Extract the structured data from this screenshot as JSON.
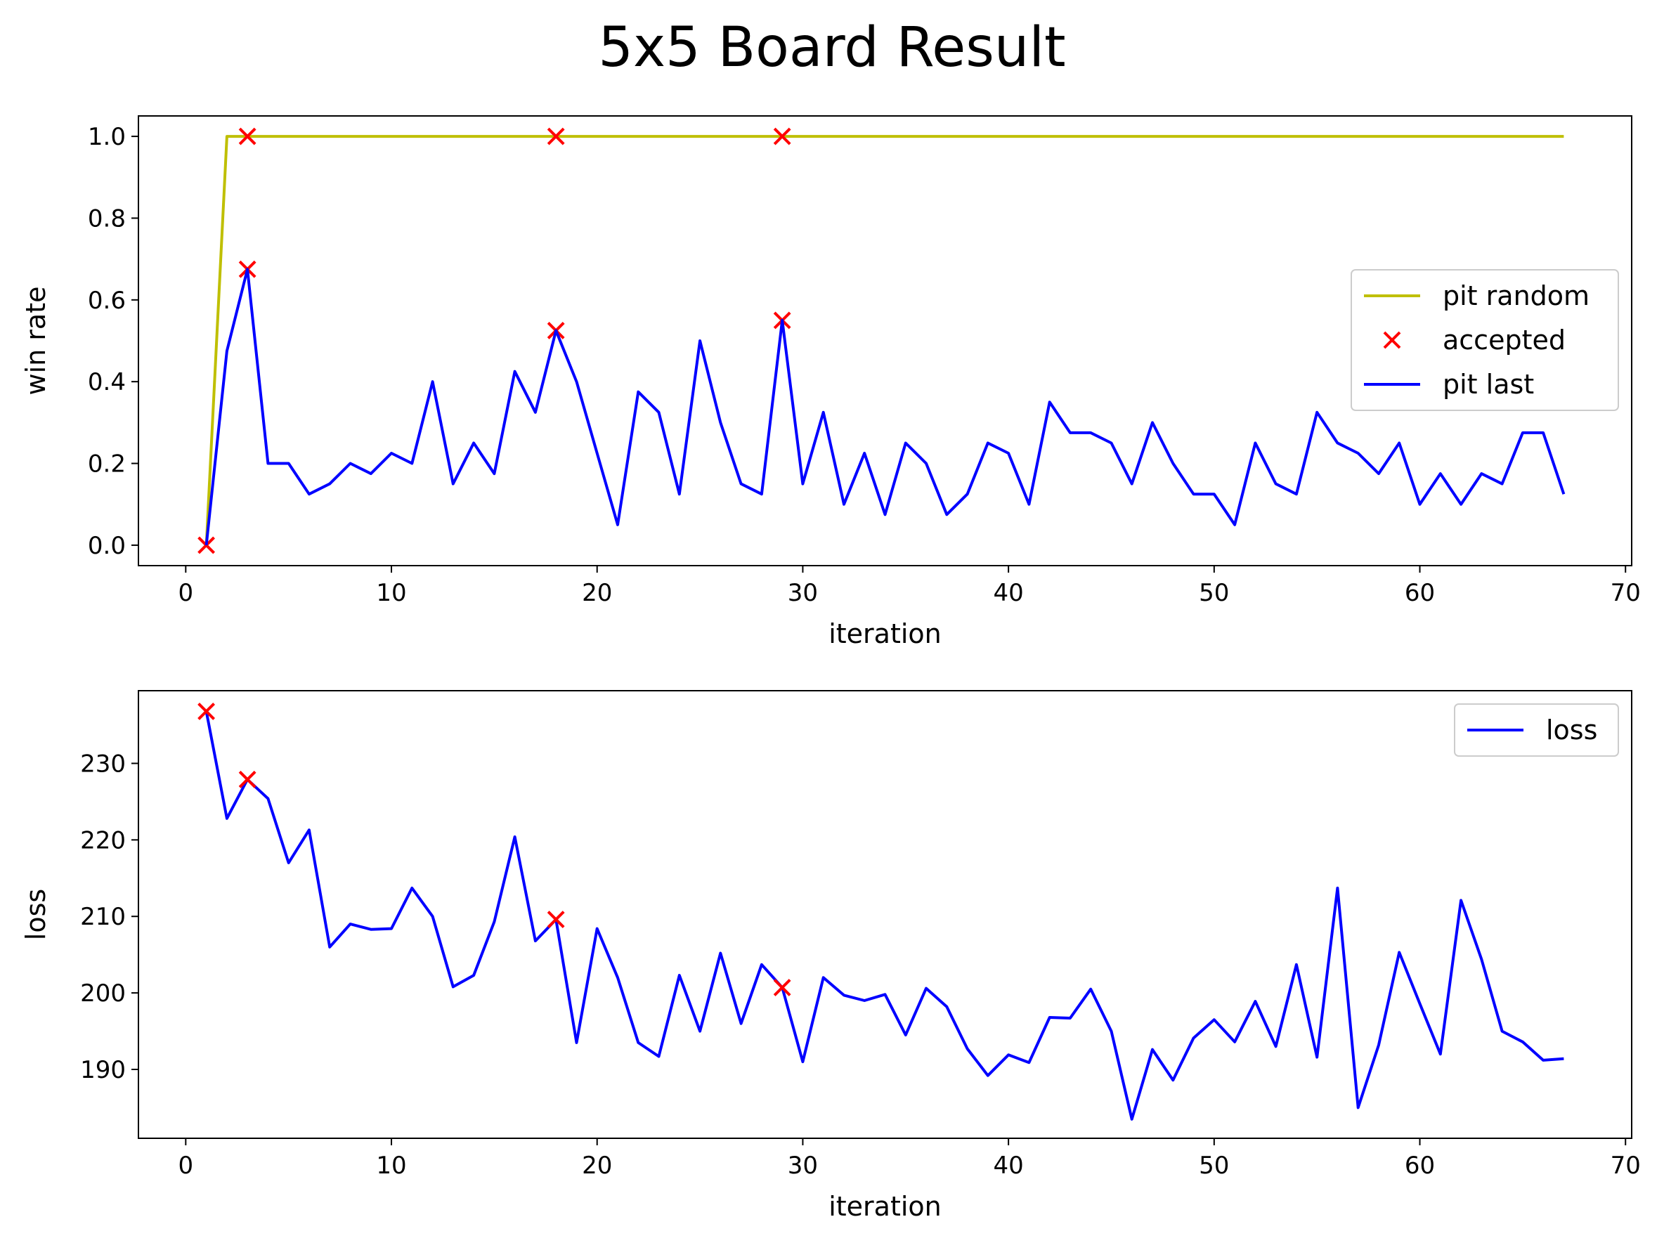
{
  "title": "5x5 Board Result",
  "colors": {
    "pit_random": "#bfbf00",
    "accepted": "#ff0000",
    "pit_last": "#0000ff",
    "loss": "#0000ff"
  },
  "chart_data": [
    {
      "type": "line",
      "xlabel": "iteration",
      "ylabel": "win rate",
      "xlim": [
        -2.3,
        70.3
      ],
      "ylim": [
        -0.05,
        1.05
      ],
      "xticks": [
        0,
        10,
        20,
        30,
        40,
        50,
        60,
        70
      ],
      "yticks": [
        0.0,
        0.2,
        0.4,
        0.6,
        0.8,
        1.0
      ],
      "ytick_labels": [
        "0.0",
        "0.2",
        "0.4",
        "0.6",
        "0.8",
        "1.0"
      ],
      "grid": false,
      "legend_position": "center-right",
      "legend": [
        "pit random",
        "accepted",
        "pit last"
      ],
      "series": [
        {
          "name": "pit random",
          "kind": "line",
          "color": "#bfbf00",
          "x": [
            1,
            2,
            3,
            4,
            5,
            6,
            7,
            8,
            9,
            10,
            11,
            12,
            13,
            14,
            15,
            16,
            17,
            18,
            19,
            20,
            21,
            22,
            23,
            24,
            25,
            26,
            27,
            28,
            29,
            30,
            31,
            32,
            33,
            34,
            35,
            36,
            37,
            38,
            39,
            40,
            41,
            42,
            43,
            44,
            45,
            46,
            47,
            48,
            49,
            50,
            51,
            52,
            53,
            54,
            55,
            56,
            57,
            58,
            59,
            60,
            61,
            62,
            63,
            64,
            65,
            66,
            67
          ],
          "y": [
            0,
            1,
            1,
            1,
            1,
            1,
            1,
            1,
            1,
            1,
            1,
            1,
            1,
            1,
            1,
            1,
            1,
            1,
            1,
            1,
            1,
            1,
            1,
            1,
            1,
            1,
            1,
            1,
            1,
            1,
            1,
            1,
            1,
            1,
            1,
            1,
            1,
            1,
            1,
            1,
            1,
            1,
            1,
            1,
            1,
            1,
            1,
            1,
            1,
            1,
            1,
            1,
            1,
            1,
            1,
            1,
            1,
            1,
            1,
            1,
            1,
            1,
            1,
            1,
            1,
            1,
            1
          ]
        },
        {
          "name": "accepted",
          "kind": "scatter",
          "color": "#ff0000",
          "x": [
            1,
            3,
            18,
            29,
            3,
            18,
            29
          ],
          "y": [
            0.0,
            1.0,
            1.0,
            1.0,
            0.675,
            0.525,
            0.55
          ]
        },
        {
          "name": "pit last",
          "kind": "line",
          "color": "#0000ff",
          "x": [
            1,
            2,
            3,
            4,
            5,
            6,
            7,
            8,
            9,
            10,
            11,
            12,
            13,
            14,
            15,
            16,
            17,
            18,
            19,
            20,
            21,
            22,
            23,
            24,
            25,
            26,
            27,
            28,
            29,
            30,
            31,
            32,
            33,
            34,
            35,
            36,
            37,
            38,
            39,
            40,
            41,
            42,
            43,
            44,
            45,
            46,
            47,
            48,
            49,
            50,
            51,
            52,
            53,
            54,
            55,
            56,
            57,
            58,
            59,
            60,
            61,
            62,
            63,
            64,
            65,
            66,
            67
          ],
          "y": [
            0.0,
            0.475,
            0.675,
            0.2,
            0.2,
            0.125,
            0.15,
            0.2,
            0.175,
            0.225,
            0.2,
            0.4,
            0.15,
            0.25,
            0.175,
            0.425,
            0.325,
            0.525,
            0.4,
            0.225,
            0.05,
            0.375,
            0.325,
            0.125,
            0.5,
            0.3,
            0.15,
            0.125,
            0.55,
            0.15,
            0.325,
            0.1,
            0.225,
            0.075,
            0.25,
            0.2,
            0.075,
            0.125,
            0.25,
            0.225,
            0.1,
            0.35,
            0.275,
            0.275,
            0.25,
            0.15,
            0.3,
            0.2,
            0.125,
            0.125,
            0.05,
            0.25,
            0.15,
            0.125,
            0.325,
            0.25,
            0.225,
            0.175,
            0.25,
            0.1,
            0.175,
            0.1,
            0.175,
            0.15,
            0.275,
            0.275,
            0.125
          ]
        }
      ]
    },
    {
      "type": "line",
      "xlabel": "iteration",
      "ylabel": "loss",
      "xlim": [
        -2.3,
        70.3
      ],
      "ylim": [
        181,
        239.5
      ],
      "xticks": [
        0,
        10,
        20,
        30,
        40,
        50,
        60,
        70
      ],
      "yticks": [
        190,
        200,
        210,
        220,
        230
      ],
      "ytick_labels": [
        "190",
        "200",
        "210",
        "220",
        "230"
      ],
      "grid": false,
      "legend_position": "top-right",
      "legend": [
        "loss"
      ],
      "series": [
        {
          "name": "loss",
          "kind": "line",
          "color": "#0000ff",
          "x": [
            1,
            2,
            3,
            4,
            5,
            6,
            7,
            8,
            9,
            10,
            11,
            12,
            13,
            14,
            15,
            16,
            17,
            18,
            19,
            20,
            21,
            22,
            23,
            24,
            25,
            26,
            27,
            28,
            29,
            30,
            31,
            32,
            33,
            34,
            35,
            36,
            37,
            38,
            39,
            40,
            41,
            42,
            43,
            44,
            45,
            46,
            47,
            48,
            49,
            50,
            51,
            52,
            53,
            54,
            55,
            56,
            57,
            58,
            59,
            60,
            61,
            62,
            63,
            64,
            65,
            66,
            67
          ],
          "y": [
            236.8,
            222.8,
            227.9,
            225.4,
            217.0,
            221.3,
            206.0,
            209.0,
            208.3,
            208.4,
            213.7,
            210.0,
            200.8,
            202.3,
            209.3,
            220.4,
            206.8,
            209.6,
            193.5,
            208.4,
            202.0,
            193.5,
            191.7,
            202.3,
            195.0,
            205.2,
            196.0,
            203.7,
            200.7,
            191.0,
            202.0,
            199.7,
            199.0,
            199.8,
            194.5,
            200.6,
            198.2,
            192.7,
            189.2,
            191.9,
            190.9,
            196.8,
            196.7,
            200.5,
            195.0,
            183.5,
            192.6,
            188.6,
            194.1,
            196.5,
            193.6,
            198.9,
            193.0,
            203.7,
            191.6,
            213.7,
            185.0,
            193.2,
            205.3,
            198.6,
            192.0,
            212.1,
            204.4,
            195.0,
            193.6,
            191.2,
            191.4
          ]
        },
        {
          "name": "",
          "kind": "scatter",
          "color": "#ff0000",
          "x": [
            1,
            3,
            18,
            29
          ],
          "y": [
            236.8,
            227.9,
            209.6,
            200.7
          ]
        }
      ]
    }
  ]
}
